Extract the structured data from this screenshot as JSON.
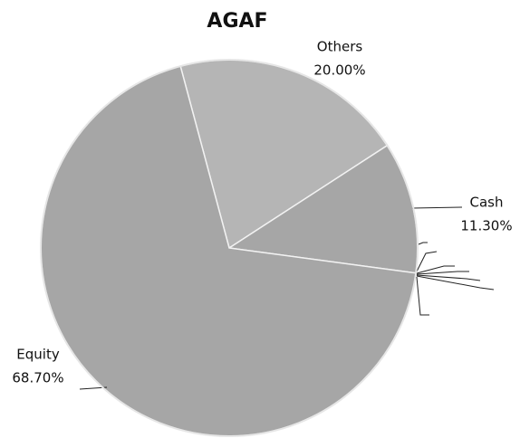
{
  "chart_data": {
    "type": "pie",
    "title": "AGAF",
    "categories": [
      "Others",
      "Cash",
      "Equity"
    ],
    "values": [
      20,
      11.3,
      68.7
    ],
    "value_labels": [
      "20.00%",
      "11.30%",
      "68.70%"
    ],
    "colors": [
      "#b5b5b5",
      "#a6a6a6",
      "#a6a6a6"
    ]
  }
}
